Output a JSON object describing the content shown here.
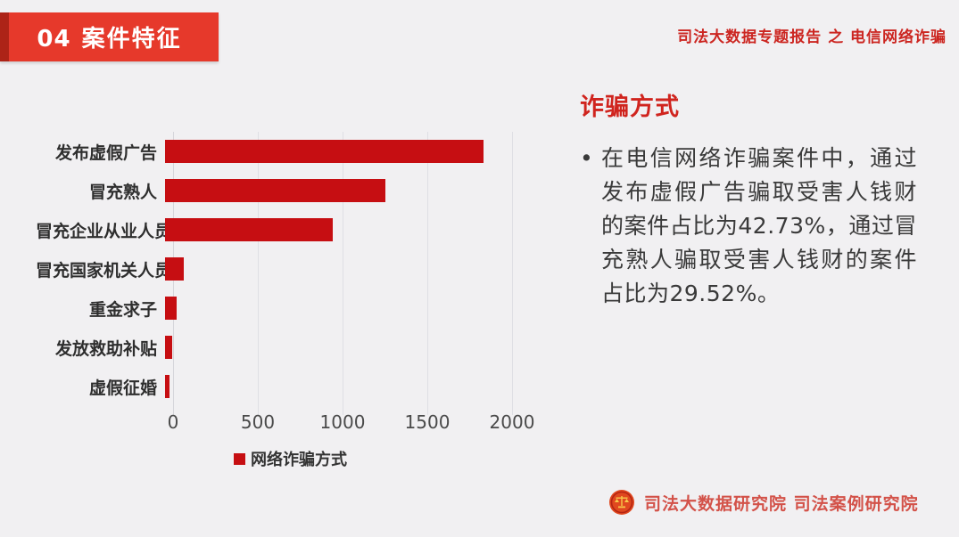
{
  "banner": {
    "number": "04",
    "title": "案件特征"
  },
  "header_right": "司法大数据专题报告 之 电信网络诈骗",
  "panel": {
    "heading": "诈骗方式",
    "bullet_marker": "•",
    "bullet_text": "在电信网络诈骗案件中，通过发布虚假广告骗取受害人钱财的案件占比为42.73%，通过冒充熟人骗取受害人钱财的案件占比为29.52%。"
  },
  "chart_data": {
    "type": "bar",
    "orientation": "horizontal",
    "categories": [
      "发布虚假广告",
      "冒充熟人",
      "冒充企业从业人员",
      "冒充国家机关人员",
      "重金求子",
      "发放救助补贴",
      "虚假征婚"
    ],
    "values": [
      1880,
      1300,
      990,
      110,
      70,
      40,
      25
    ],
    "x_ticks": [
      0,
      500,
      1000,
      1500,
      2000
    ],
    "xlim": [
      0,
      2000
    ],
    "legend": "网络诈骗方式",
    "grid": true,
    "bar_color": "#c60e12",
    "highlight_percentages": {
      "发布虚假广告": "42.73%",
      "冒充熟人": "29.52%"
    }
  },
  "footer": {
    "org_text": "司法大数据研究院  司法案例研究院",
    "logo": "justice-scales-emblem"
  },
  "colors": {
    "background": "#f1f0f2",
    "banner_red": "#e6392b",
    "banner_edge_red": "#ad2317",
    "header_red": "#cc2621",
    "bar_red": "#c60e12",
    "heading_red": "#d0241e",
    "footer_red": "#d35249",
    "body_text": "#3a3a3a"
  }
}
